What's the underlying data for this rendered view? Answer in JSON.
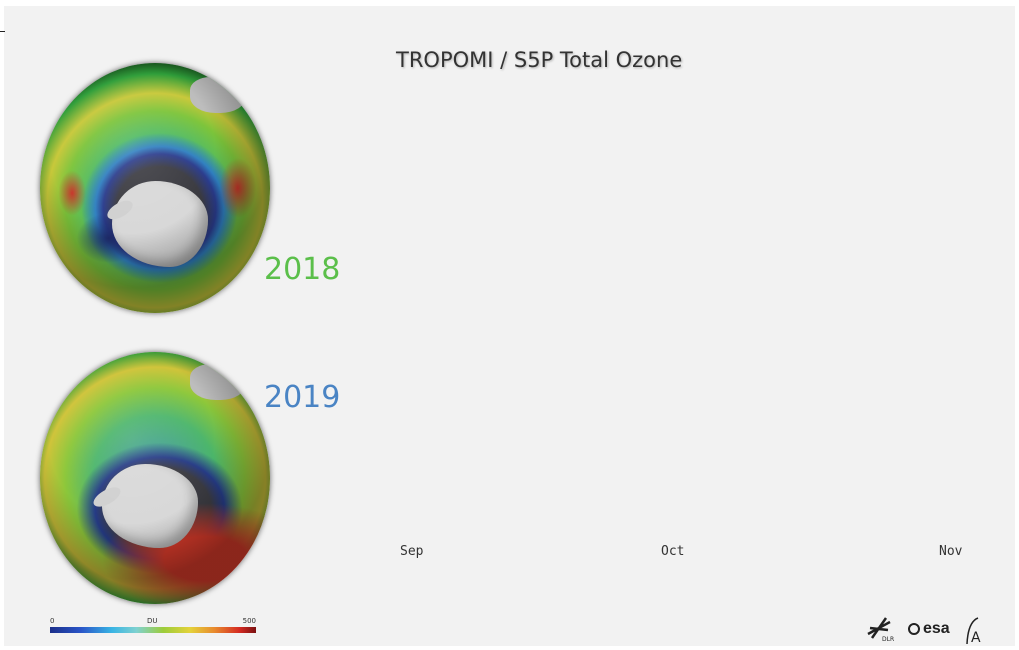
{
  "title": "TROPOMI / S5P Total Ozone",
  "years": [
    {
      "label": "2018",
      "color": "#5bbf4a"
    },
    {
      "label": "2019",
      "color": "#4a84c4"
    }
  ],
  "months": [
    "Sep",
    "Oct",
    "Nov"
  ],
  "colorbar": {
    "min": "0",
    "unit": "DU",
    "max": "500",
    "colors": [
      "#1b2f8a",
      "#39b4e4",
      "#9ccc3a",
      "#e4d23a",
      "#d42a22"
    ]
  },
  "logos": {
    "dlr": "DLR",
    "esa": "esa",
    "third": "A"
  }
}
